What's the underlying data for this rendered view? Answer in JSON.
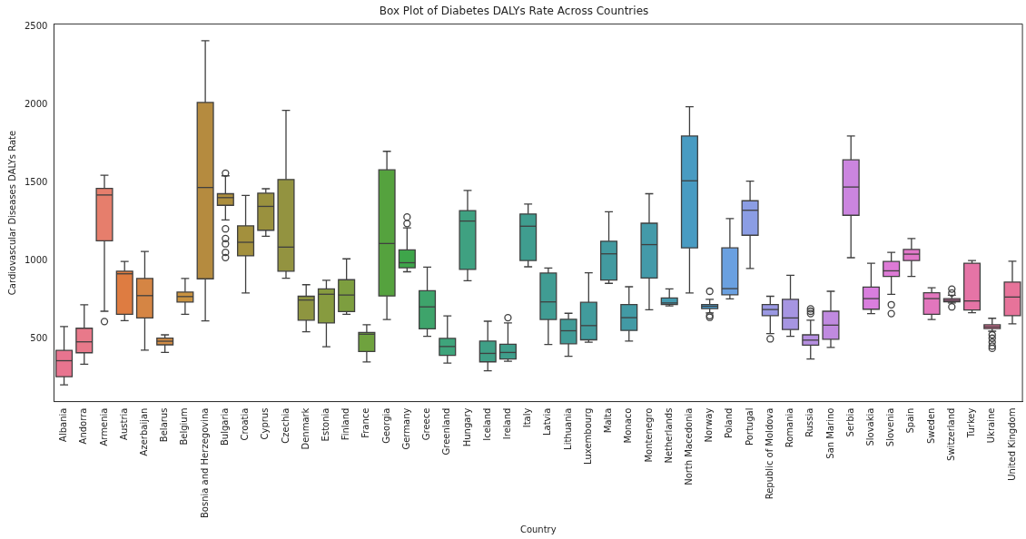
{
  "chart_data": {
    "type": "box",
    "title": "Box Plot of Diabetes DALYs Rate Across Countries",
    "xlabel": "Country",
    "ylabel": "Cardiovascular Diseases DALYs Rate",
    "categories": [
      "Albania",
      "Andorra",
      "Armenia",
      "Austria",
      "Azerbaijan",
      "Belarus",
      "Belgium",
      "Bosnia and Herzegovina",
      "Bulgaria",
      "Croatia",
      "Cyprus",
      "Czechia",
      "Denmark",
      "Estonia",
      "Finland",
      "France",
      "Georgia",
      "Germany",
      "Greece",
      "Greenland",
      "Hungary",
      "Iceland",
      "Ireland",
      "Italy",
      "Latvia",
      "Lithuania",
      "Luxembourg",
      "Malta",
      "Monaco",
      "Montenegro",
      "Netherlands",
      "North Macedonia",
      "Norway",
      "Poland",
      "Portugal",
      "Republic of Moldova",
      "Romania",
      "Russia",
      "San Marino",
      "Serbia",
      "Slovakia",
      "Slovenia",
      "Spain",
      "Sweden",
      "Switzerland",
      "Turkey",
      "Ukraine",
      "United Kingdom"
    ],
    "ylim": [
      100,
      2520
    ],
    "yticks": [
      500,
      1000,
      1500,
      2000,
      2500
    ],
    "colors": [
      "#e8748f",
      "#e8798a",
      "#e67e6c",
      "#de7c41",
      "#d58544",
      "#d18c44",
      "#c9923f",
      "#b58b3f",
      "#ac8e3d",
      "#a3903d",
      "#9a913e",
      "#939340",
      "#8e9540",
      "#879b3f",
      "#7d9e3f",
      "#6fa23e",
      "#55a23e",
      "#3ea54a",
      "#3ea46b",
      "#3ea47b",
      "#3fa181",
      "#3f9f86",
      "#3f9e8b",
      "#3f9d8f",
      "#409c93",
      "#409b97",
      "#419b9c",
      "#429aa0",
      "#429aa5",
      "#449aa9",
      "#459aaf",
      "#489bc2",
      "#4b9ccc",
      "#6aa0e0",
      "#8b9de4",
      "#9a98e3",
      "#a695e2",
      "#b68fe1",
      "#c08ae0",
      "#cb85df",
      "#d97ede",
      "#dd7ad6",
      "#e177c9",
      "#e276bd",
      "#e475b0",
      "#e574a6",
      "#e6749c",
      "#e7739a"
    ],
    "boxes": [
      {
        "low": 207,
        "q1": 260,
        "median": 362,
        "q3": 428,
        "high": 581
      },
      {
        "low": 340,
        "q1": 413,
        "median": 483,
        "q3": 570,
        "high": 721
      },
      {
        "low": 679,
        "q1": 1130,
        "median": 1424,
        "q3": 1466,
        "high": 1551,
        "outliers": [
          613
        ]
      },
      {
        "low": 619,
        "q1": 660,
        "median": 919,
        "q3": 936,
        "high": 998
      },
      {
        "low": 430,
        "q1": 636,
        "median": 779,
        "q3": 889,
        "high": 1062
      },
      {
        "low": 415,
        "q1": 464,
        "median": 487,
        "q3": 507,
        "high": 528
      },
      {
        "low": 660,
        "q1": 738,
        "median": 773,
        "q3": 802,
        "high": 889
      },
      {
        "low": 617,
        "q1": 887,
        "median": 1472,
        "q3": 2017,
        "high": 2413
      },
      {
        "low": 1264,
        "q1": 1358,
        "median": 1407,
        "q3": 1432,
        "high": 1547,
        "outliers": [
          1564,
          1207,
          1145,
          1111,
          1056,
          1023
        ]
      },
      {
        "low": 796,
        "q1": 1034,
        "median": 1121,
        "q3": 1226,
        "high": 1421
      },
      {
        "low": 1160,
        "q1": 1198,
        "median": 1351,
        "q3": 1436,
        "high": 1464
      },
      {
        "low": 891,
        "q1": 936,
        "median": 1090,
        "q3": 1523,
        "high": 1966
      },
      {
        "low": 547,
        "q1": 622,
        "median": 751,
        "q3": 775,
        "high": 849
      },
      {
        "low": 451,
        "q1": 604,
        "median": 788,
        "q3": 822,
        "high": 877
      },
      {
        "low": 660,
        "q1": 677,
        "median": 783,
        "q3": 881,
        "high": 1015
      },
      {
        "low": 354,
        "q1": 421,
        "median": 532,
        "q3": 543,
        "high": 592
      },
      {
        "low": 626,
        "q1": 777,
        "median": 1113,
        "q3": 1585,
        "high": 1704
      },
      {
        "low": 932,
        "q1": 958,
        "median": 990,
        "q3": 1072,
        "high": 1213,
        "outliers": [
          1283,
          1241
        ]
      },
      {
        "low": 519,
        "q1": 566,
        "median": 707,
        "q3": 811,
        "high": 962
      },
      {
        "low": 347,
        "q1": 396,
        "median": 453,
        "q3": 505,
        "high": 649
      },
      {
        "low": 875,
        "q1": 947,
        "median": 1257,
        "q3": 1324,
        "high": 1453
      },
      {
        "low": 298,
        "q1": 355,
        "median": 409,
        "q3": 488,
        "high": 615
      },
      {
        "low": 358,
        "q1": 373,
        "median": 415,
        "q3": 468,
        "high": 604,
        "outliers": [
          638
        ]
      },
      {
        "low": 964,
        "q1": 1004,
        "median": 1224,
        "q3": 1302,
        "high": 1366
      },
      {
        "low": 466,
        "q1": 626,
        "median": 739,
        "q3": 924,
        "high": 956
      },
      {
        "low": 390,
        "q1": 471,
        "median": 554,
        "q3": 628,
        "high": 666
      },
      {
        "low": 481,
        "q1": 496,
        "median": 587,
        "q3": 736,
        "high": 926
      },
      {
        "low": 858,
        "q1": 879,
        "median": 1047,
        "q3": 1128,
        "high": 1317
      },
      {
        "low": 488,
        "q1": 556,
        "median": 638,
        "q3": 722,
        "high": 836
      },
      {
        "low": 689,
        "q1": 892,
        "median": 1106,
        "q3": 1243,
        "high": 1432
      },
      {
        "low": 713,
        "q1": 722,
        "median": 732,
        "q3": 764,
        "high": 822
      },
      {
        "low": 796,
        "q1": 1085,
        "median": 1515,
        "q3": 1802,
        "high": 1989
      },
      {
        "low": 668,
        "q1": 696,
        "median": 711,
        "q3": 722,
        "high": 755,
        "outliers": [
          807,
          651,
          640
        ]
      },
      {
        "low": 758,
        "q1": 785,
        "median": 824,
        "q3": 1085,
        "high": 1273
      },
      {
        "low": 953,
        "q1": 1166,
        "median": 1326,
        "q3": 1387,
        "high": 1513
      },
      {
        "low": 536,
        "q1": 651,
        "median": 690,
        "q3": 722,
        "high": 775,
        "outliers": [
          502
        ]
      },
      {
        "low": 519,
        "q1": 562,
        "median": 636,
        "q3": 755,
        "high": 909
      },
      {
        "low": 373,
        "q1": 462,
        "median": 494,
        "q3": 528,
        "high": 622,
        "outliers": [
          694,
          679,
          664
        ]
      },
      {
        "low": 447,
        "q1": 500,
        "median": 590,
        "q3": 679,
        "high": 807
      },
      {
        "low": 1022,
        "q1": 1294,
        "median": 1475,
        "q3": 1649,
        "high": 1802
      },
      {
        "low": 664,
        "q1": 692,
        "median": 760,
        "q3": 834,
        "high": 987
      },
      {
        "low": 787,
        "q1": 902,
        "median": 938,
        "q3": 998,
        "high": 1056,
        "outliers": [
          721,
          664
        ]
      },
      {
        "low": 902,
        "q1": 1004,
        "median": 1045,
        "q3": 1075,
        "high": 1145
      },
      {
        "low": 626,
        "q1": 660,
        "median": 760,
        "q3": 798,
        "high": 830
      },
      {
        "low": 732,
        "q1": 740,
        "median": 749,
        "q3": 760,
        "high": 781,
        "outliers": [
          821,
          796,
          707
        ]
      },
      {
        "low": 670,
        "q1": 687,
        "median": 745,
        "q3": 987,
        "high": 1004
      },
      {
        "low": 551,
        "q1": 568,
        "median": 579,
        "q3": 592,
        "high": 634,
        "outliers": [
          528,
          506,
          481,
          456,
          441
        ]
      },
      {
        "low": 598,
        "q1": 651,
        "median": 770,
        "q3": 866,
        "high": 1000
      }
    ]
  }
}
